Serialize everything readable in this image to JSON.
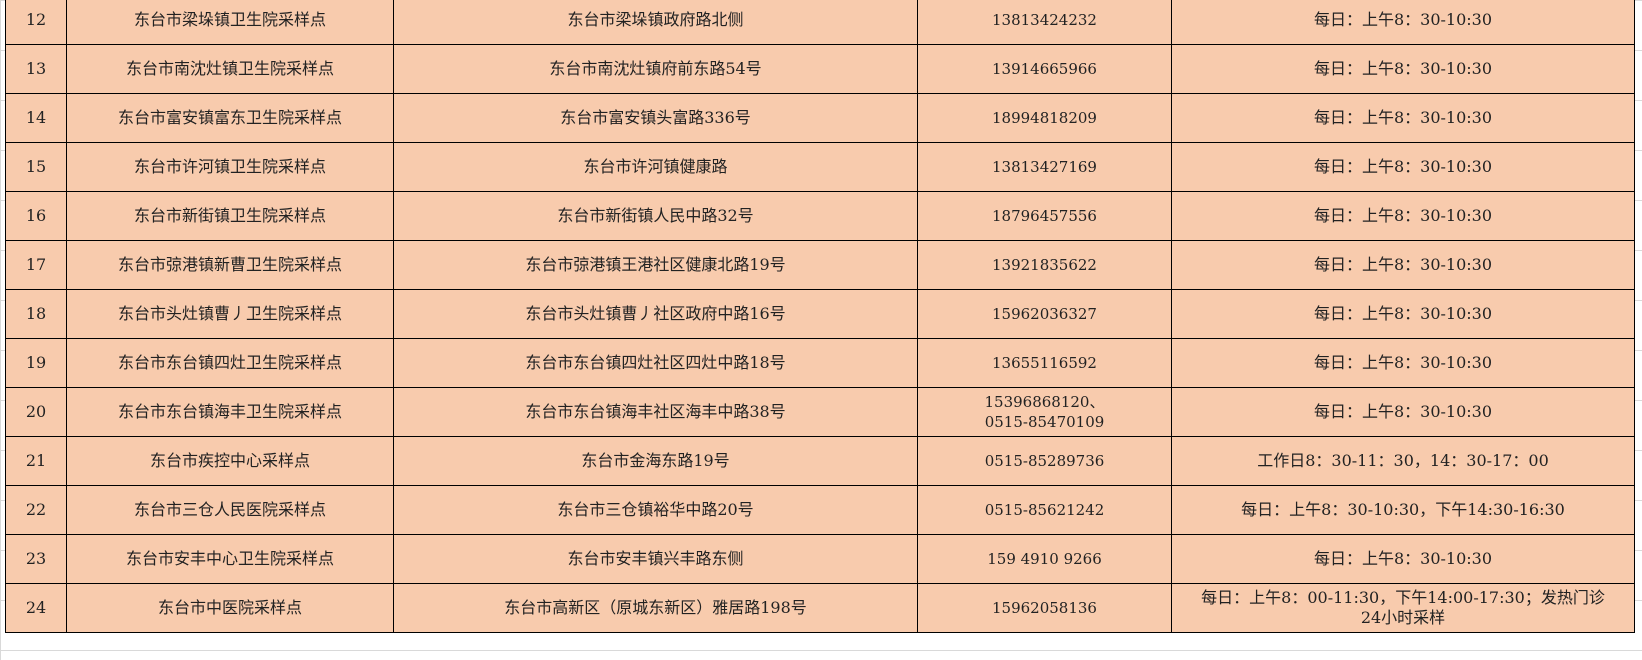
{
  "table": {
    "fill_color": "#F8CBAD",
    "rows": [
      {
        "no": "12",
        "name": "东台市梁垛镇卫生院采样点",
        "address": "东台市梁垛镇政府路北侧",
        "phone": "13813424232",
        "hours": "每日：上午8：30-10:30"
      },
      {
        "no": "13",
        "name": "东台市南沈灶镇卫生院采样点",
        "address": "东台市南沈灶镇府前东路54号",
        "phone": "13914665966",
        "hours": "每日：上午8：30-10:30"
      },
      {
        "no": "14",
        "name": "东台市富安镇富东卫生院采样点",
        "address": "东台市富安镇头富路336号",
        "phone": "18994818209",
        "hours": "每日：上午8：30-10:30"
      },
      {
        "no": "15",
        "name": "东台市许河镇卫生院采样点",
        "address": "东台市许河镇健康路",
        "phone": "13813427169",
        "hours": "每日：上午8：30-10:30"
      },
      {
        "no": "16",
        "name": "东台市新街镇卫生院采样点",
        "address": "东台市新街镇人民中路32号",
        "phone": "18796457556",
        "hours": "每日：上午8：30-10:30"
      },
      {
        "no": "17",
        "name": "东台市弶港镇新曹卫生院采样点",
        "address": "东台市弶港镇王港社区健康北路19号",
        "phone": "13921835622",
        "hours": "每日：上午8：30-10:30"
      },
      {
        "no": "18",
        "name": "东台市头灶镇曹丿卫生院采样点",
        "address": "东台市头灶镇曹丿社区政府中路16号",
        "phone": "15962036327",
        "hours": "每日：上午8：30-10:30"
      },
      {
        "no": "19",
        "name": "东台市东台镇四灶卫生院采样点",
        "address": "东台市东台镇四灶社区四灶中路18号",
        "phone": "13655116592",
        "hours": "每日：上午8：30-10:30"
      },
      {
        "no": "20",
        "name": "东台市东台镇海丰卫生院采样点",
        "address": "东台市东台镇海丰社区海丰中路38号",
        "phone": "15396868120、\n0515-85470109",
        "hours": "每日：上午8：30-10:30"
      },
      {
        "no": "21",
        "name": "东台市疾控中心采样点",
        "address": "东台市金海东路19号",
        "phone": "0515-85289736",
        "hours": "工作日8：30-11：30，14：30-17：00"
      },
      {
        "no": "22",
        "name": "东台市三仓人民医院采样点",
        "address": "东台市三仓镇裕华中路20号",
        "phone": "0515-85621242",
        "hours": "每日：上午8：30-10:30，下午14:30-16:30"
      },
      {
        "no": "23",
        "name": "东台市安丰中心卫生院采样点",
        "address": "东台市安丰镇兴丰路东侧",
        "phone": "159 4910 9266",
        "hours": "每日：上午8：30-10:30"
      },
      {
        "no": "24",
        "name": "东台市中医院采样点",
        "address": "东台市高新区（原城东新区）雅居路198号",
        "phone": "15962058136",
        "hours": "每日：上午8：00-11:30，下午14:00-17:30；发热门诊24小时采样"
      }
    ]
  }
}
